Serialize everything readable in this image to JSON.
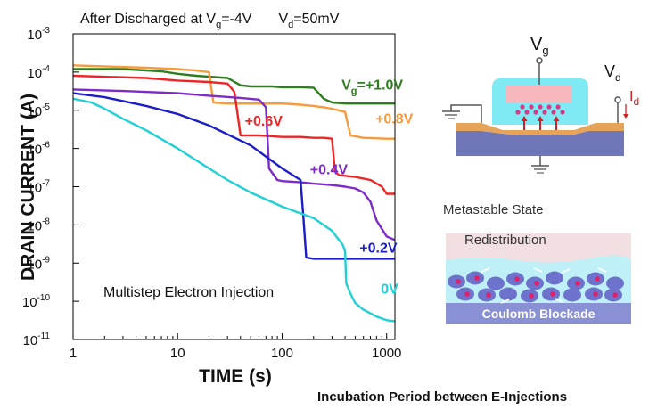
{
  "chart_data": {
    "type": "line",
    "title_parts": [
      "After Discharged at V",
      "g",
      "=-4V",
      "V",
      "d",
      "=50mV"
    ],
    "xlabel": "TIME (s)",
    "ylabel": "DRAIN CURRENT (A)",
    "x_scale": "log",
    "y_scale": "log",
    "xlim": [
      1,
      1200
    ],
    "ylim": [
      1e-11,
      0.001
    ],
    "x_ticks": [
      {
        "v": 1,
        "label": "1"
      },
      {
        "v": 10,
        "label": "10"
      },
      {
        "v": 100,
        "label": "100"
      },
      {
        "v": 1000,
        "label": "1000"
      }
    ],
    "y_ticks": [
      {
        "v": 0.001,
        "b": "10",
        "e": "-3"
      },
      {
        "v": 0.0001,
        "b": "10",
        "e": "-4"
      },
      {
        "v": 1e-05,
        "b": "10",
        "e": "-5"
      },
      {
        "v": 1e-06,
        "b": "10",
        "e": "-6"
      },
      {
        "v": 1e-07,
        "b": "10",
        "e": "-7"
      },
      {
        "v": 1e-08,
        "b": "10",
        "e": "-8"
      },
      {
        "v": 1e-09,
        "b": "10",
        "e": "-9"
      },
      {
        "v": 1e-10,
        "b": "10",
        "e": "-10"
      },
      {
        "v": 1e-11,
        "b": "10",
        "e": "-11"
      }
    ],
    "annotation": "Multistep Electron Injection",
    "series": [
      {
        "name_parts": [
          "V",
          "g",
          "=+1.0V"
        ],
        "color": "#2e7d1e",
        "label_x": 370,
        "label_y": 3.5e-05,
        "x": [
          1,
          3,
          5,
          7,
          10,
          15,
          30,
          40,
          50,
          60,
          80,
          100,
          150,
          200,
          250,
          300,
          400,
          600,
          800,
          1200
        ],
        "y": [
          0.00012,
          0.00012,
          0.00011,
          0.000105,
          9e-05,
          8e-05,
          7e-05,
          4.5e-05,
          4.2e-05,
          4.2e-05,
          4.2e-05,
          4e-05,
          4e-05,
          3.9e-05,
          2e-05,
          1.6e-05,
          1.5e-05,
          1.5e-05,
          1.5e-05,
          1.5e-05
        ]
      },
      {
        "name_parts": [
          "+0.8V"
        ],
        "color": "#f79a3c",
        "label_x": 780,
        "label_y": 4.5e-06,
        "x": [
          1,
          5,
          10,
          15,
          20,
          22,
          30,
          60,
          100,
          150,
          200,
          250,
          300,
          400,
          450,
          600,
          1000,
          1200
        ],
        "y": [
          0.00015,
          0.00013,
          0.00012,
          0.00011,
          0.0001,
          1.6e-05,
          1.5e-05,
          1.5e-05,
          1.5e-05,
          1.4e-05,
          1.3e-05,
          1.2e-05,
          1.1e-05,
          9e-06,
          2.2e-06,
          1.9e-06,
          1.8e-06,
          1.8e-06
        ]
      },
      {
        "name_parts": [
          "+0.6V"
        ],
        "color": "#ee2525",
        "label_x": 44,
        "label_y": 4e-06,
        "x": [
          1,
          5,
          10,
          20,
          30,
          35,
          40,
          60,
          100,
          150,
          200,
          250,
          300,
          320,
          350,
          500,
          700,
          900,
          1000,
          1200
        ],
        "y": [
          8e-05,
          7e-05,
          6e-05,
          5.5e-05,
          5e-05,
          3e-05,
          2.2e-06,
          2.2e-06,
          2e-06,
          2e-06,
          1.9e-06,
          1.9e-06,
          1.8e-06,
          2.5e-07,
          2e-07,
          1.8e-07,
          1.5e-07,
          1e-07,
          6.5e-08,
          6.5e-08
        ]
      },
      {
        "name_parts": [
          "+0.4V"
        ],
        "color": "#7d2ac9",
        "label_x": 185,
        "label_y": 2.1e-07,
        "x": [
          1,
          3,
          10,
          20,
          40,
          60,
          70,
          75,
          90,
          100,
          150,
          200,
          300,
          400,
          500,
          600,
          700,
          800,
          1000,
          1200
        ],
        "y": [
          3.5e-05,
          3.2e-05,
          2.8e-05,
          2.4e-05,
          2.1e-05,
          1.9e-05,
          1.2e-05,
          3e-07,
          1.5e-07,
          1.4e-07,
          1.3e-07,
          1.2e-07,
          1.1e-07,
          1e-07,
          9e-08,
          7e-08,
          4e-08,
          1.3e-08,
          5e-09,
          4e-09
        ]
      },
      {
        "name_parts": [
          "+0.2V"
        ],
        "color": "#1c1cc8",
        "label_x": 550,
        "label_y": 1.9e-09,
        "x": [
          1,
          2,
          5,
          10,
          20,
          50,
          100,
          150,
          160,
          170,
          200,
          300,
          500,
          1000,
          1200
        ],
        "y": [
          2.8e-05,
          2.2e-05,
          1.3e-05,
          8e-06,
          4e-06,
          1.2e-06,
          3e-07,
          1.5e-07,
          1.5e-08,
          1.4e-09,
          1.3e-09,
          1.3e-09,
          1.3e-09,
          1.3e-09,
          1.3e-09
        ]
      },
      {
        "name_parts": [
          "0V"
        ],
        "color": "#1fd0d4",
        "label_x": 880,
        "label_y": 1.6e-10,
        "x": [
          1,
          1.5,
          2,
          3,
          5,
          10,
          20,
          30,
          50,
          100,
          200,
          300,
          350,
          380,
          400,
          410,
          450,
          500,
          600,
          800,
          1000,
          1200
        ],
        "y": [
          2e-05,
          1.6e-05,
          1.1e-05,
          6e-06,
          3e-06,
          1e-06,
          3e-07,
          1.5e-07,
          7e-08,
          3e-08,
          1.5e-08,
          7e-09,
          4e-09,
          3e-09,
          2e-09,
          3e-10,
          1.6e-10,
          9e-11,
          6e-11,
          4e-11,
          3.2e-11,
          3e-11
        ]
      }
    ]
  },
  "schematic": {
    "vg_base": "V",
    "vg_sub": "g",
    "vd_base": "V",
    "vd_sub": "d",
    "id_base": "I",
    "id_sub": "d"
  },
  "metastable_label": "Metastable State",
  "redistribution_label": "Redistribution",
  "coulomb_label": "Coulomb Blockade",
  "caption": "Incubation Period between E-Injections"
}
